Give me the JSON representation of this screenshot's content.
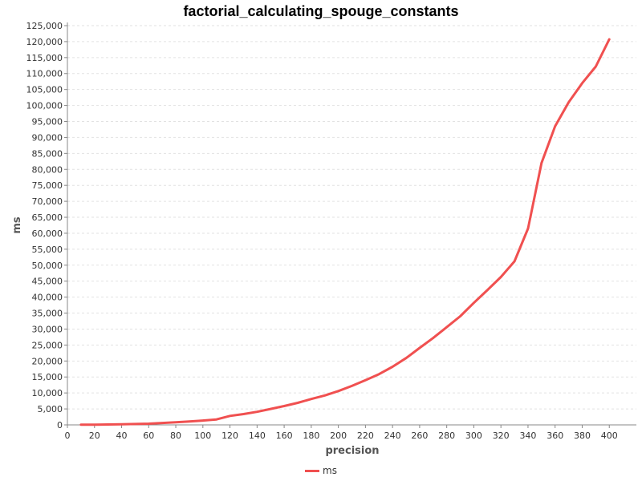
{
  "chart_data": {
    "type": "line",
    "title": "factorial_calculating_spouge_constants",
    "xlabel": "precision",
    "ylabel": "ms",
    "xlim": [
      0,
      420
    ],
    "ylim": [
      0,
      126000
    ],
    "x_ticks": [
      0,
      20,
      40,
      60,
      80,
      100,
      120,
      140,
      160,
      180,
      200,
      220,
      240,
      260,
      280,
      300,
      320,
      340,
      360,
      380,
      400
    ],
    "y_ticks": [
      0,
      5000,
      10000,
      15000,
      20000,
      25000,
      30000,
      35000,
      40000,
      45000,
      50000,
      55000,
      60000,
      65000,
      70000,
      75000,
      80000,
      85000,
      90000,
      95000,
      100000,
      105000,
      110000,
      115000,
      120000,
      125000
    ],
    "grid": true,
    "legend_position": "bottom-center",
    "series": [
      {
        "name": "ms",
        "color": "#f05050",
        "x": [
          10,
          20,
          30,
          40,
          50,
          60,
          70,
          80,
          90,
          100,
          110,
          120,
          130,
          140,
          150,
          160,
          170,
          180,
          190,
          200,
          210,
          220,
          230,
          240,
          250,
          260,
          270,
          280,
          290,
          300,
          310,
          320,
          330,
          340,
          350,
          360,
          370,
          380,
          390,
          400
        ],
        "y": [
          50,
          80,
          120,
          200,
          280,
          380,
          600,
          800,
          1050,
          1350,
          1700,
          2800,
          3400,
          4100,
          5000,
          5900,
          6900,
          8100,
          9200,
          10600,
          12200,
          14000,
          15900,
          18200,
          20900,
          24100,
          27200,
          30600,
          34000,
          38200,
          42200,
          46300,
          51200,
          61500,
          82000,
          93500,
          101000,
          107000,
          112200,
          120700
        ]
      }
    ]
  }
}
